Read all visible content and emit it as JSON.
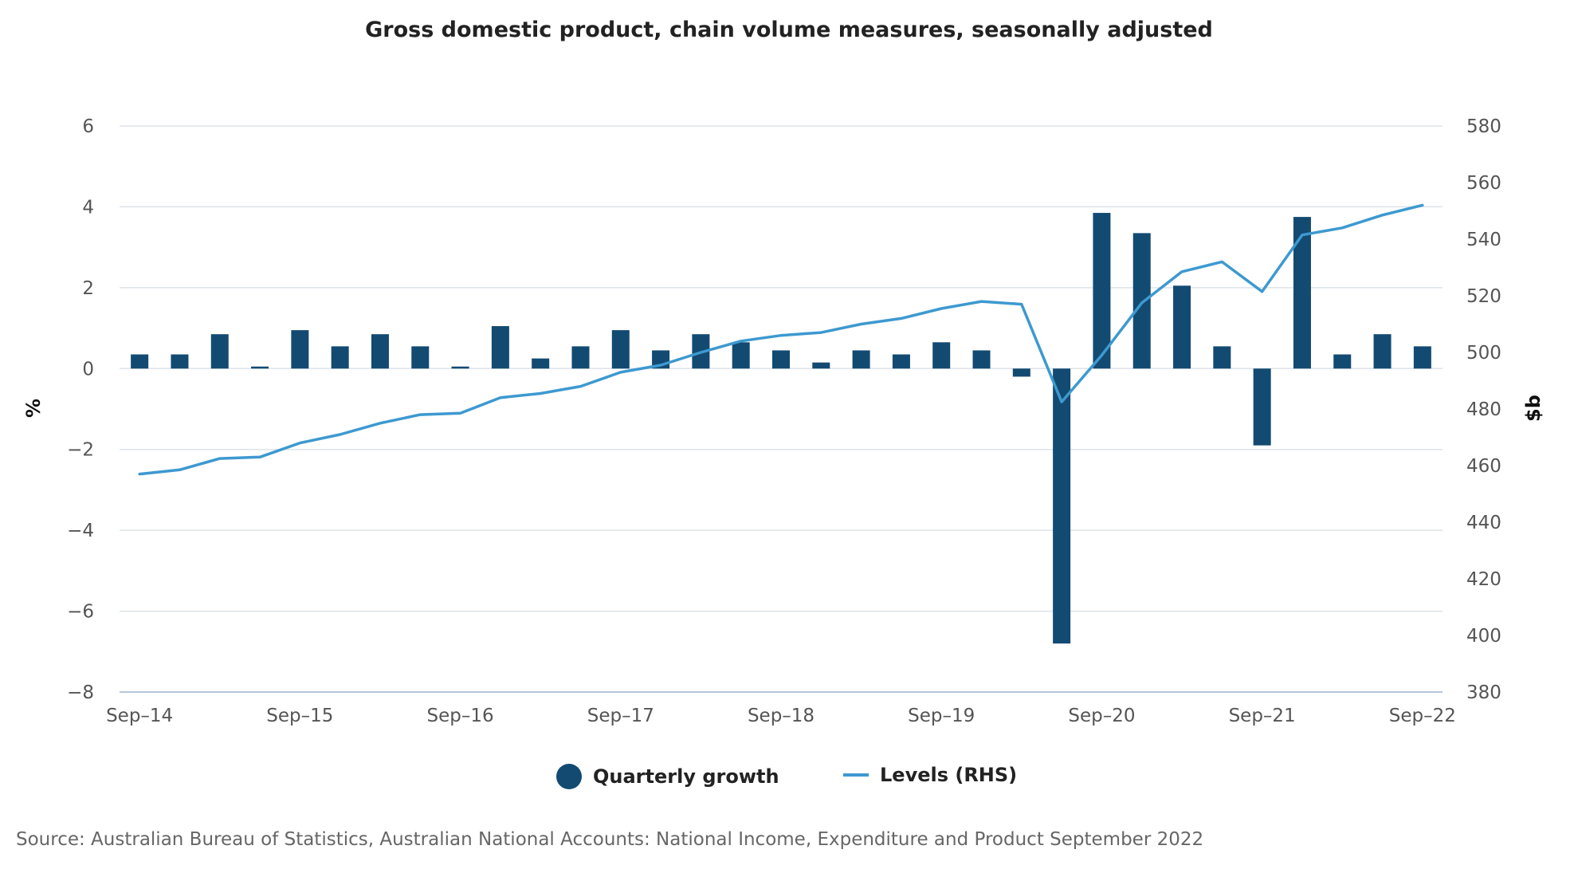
{
  "chart_data": {
    "type": "bar+line",
    "title": "Gross domestic product, chain volume measures, seasonally adjusted",
    "ylabel_left": "%",
    "ylabel_right": "$b",
    "ylim_left": [
      -8,
      6
    ],
    "ylim_right": [
      380,
      580
    ],
    "yticks_left": [
      6,
      4,
      2,
      0,
      -2,
      -4,
      -6,
      -8
    ],
    "yticks_left_labels": [
      "6",
      "4",
      "2",
      "0",
      "−2",
      "−4",
      "−6",
      "−8"
    ],
    "yticks_right": [
      580,
      560,
      540,
      520,
      500,
      480,
      460,
      440,
      420,
      400,
      380
    ],
    "x_tick_labels": [
      "Sep–14",
      "Sep–15",
      "Sep–16",
      "Sep–17",
      "Sep–18",
      "Sep–19",
      "Sep–20",
      "Sep–21",
      "Sep–22"
    ],
    "x_tick_indices": [
      0,
      4,
      8,
      12,
      16,
      20,
      24,
      28,
      32
    ],
    "categories": [
      "Sep-14",
      "Dec-14",
      "Mar-15",
      "Jun-15",
      "Sep-15",
      "Dec-15",
      "Mar-16",
      "Jun-16",
      "Sep-16",
      "Dec-16",
      "Mar-17",
      "Jun-17",
      "Sep-17",
      "Dec-17",
      "Mar-18",
      "Jun-18",
      "Sep-18",
      "Dec-18",
      "Mar-19",
      "Jun-19",
      "Sep-19",
      "Dec-19",
      "Mar-20",
      "Jun-20",
      "Sep-20",
      "Dec-20",
      "Mar-21",
      "Jun-21",
      "Sep-21",
      "Dec-21",
      "Mar-22",
      "Jun-22",
      "Sep-22"
    ],
    "series": [
      {
        "name": "Quarterly growth",
        "type": "bar",
        "axis": "left",
        "color": "#124a72",
        "values": [
          0.35,
          0.35,
          0.85,
          0.05,
          0.95,
          0.55,
          0.85,
          0.55,
          0.05,
          1.05,
          0.25,
          0.55,
          0.95,
          0.45,
          0.85,
          0.65,
          0.45,
          0.15,
          0.45,
          0.35,
          0.65,
          0.45,
          -0.2,
          -6.8,
          3.85,
          3.35,
          2.05,
          0.55,
          -1.9,
          3.75,
          0.35,
          0.85,
          0.55
        ]
      },
      {
        "name": "Levels (RHS)",
        "type": "line",
        "axis": "right",
        "color": "#3d99d0",
        "values": [
          457,
          458.5,
          462.5,
          463,
          468,
          471,
          475,
          478,
          478.5,
          484,
          485.5,
          488,
          493,
          495.5,
          500,
          504,
          506,
          507,
          510,
          512,
          515.5,
          518,
          517,
          482.5,
          499,
          517.5,
          528.5,
          532,
          521.5,
          541.5,
          544,
          548.5,
          552
        ]
      }
    ],
    "grid": true,
    "legend_position": "bottom-center"
  },
  "source_text": "Source: Australian Bureau of Statistics, Australian National Accounts: National Income, Expenditure and Product September 2022"
}
